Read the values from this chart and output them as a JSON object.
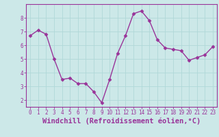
{
  "x": [
    0,
    1,
    2,
    3,
    4,
    5,
    6,
    7,
    8,
    9,
    10,
    11,
    12,
    13,
    14,
    15,
    16,
    17,
    18,
    19,
    20,
    21,
    22,
    23
  ],
  "y": [
    6.7,
    7.1,
    6.8,
    5.0,
    3.5,
    3.6,
    3.2,
    3.2,
    2.6,
    1.8,
    3.5,
    5.4,
    6.7,
    8.3,
    8.5,
    7.8,
    6.4,
    5.8,
    5.7,
    5.6,
    4.9,
    5.1,
    5.3,
    5.9
  ],
  "line_color": "#993399",
  "marker": "D",
  "markersize": 2.5,
  "linewidth": 1.0,
  "bg_color": "#cce8e8",
  "grid_color": "#b0d8d8",
  "xlabel": "Windchill (Refroidissement éolien,°C)",
  "ylabel_ticks": [
    2,
    3,
    4,
    5,
    6,
    7,
    8
  ],
  "xlim": [
    -0.5,
    23.5
  ],
  "ylim": [
    1.5,
    9.0
  ],
  "xticks": [
    0,
    1,
    2,
    3,
    4,
    5,
    6,
    7,
    8,
    9,
    10,
    11,
    12,
    13,
    14,
    15,
    16,
    17,
    18,
    19,
    20,
    21,
    22,
    23
  ],
  "tick_fontsize": 5.5,
  "label_fontsize": 7.5,
  "axis_color": "#993399",
  "spine_color": "#993399"
}
